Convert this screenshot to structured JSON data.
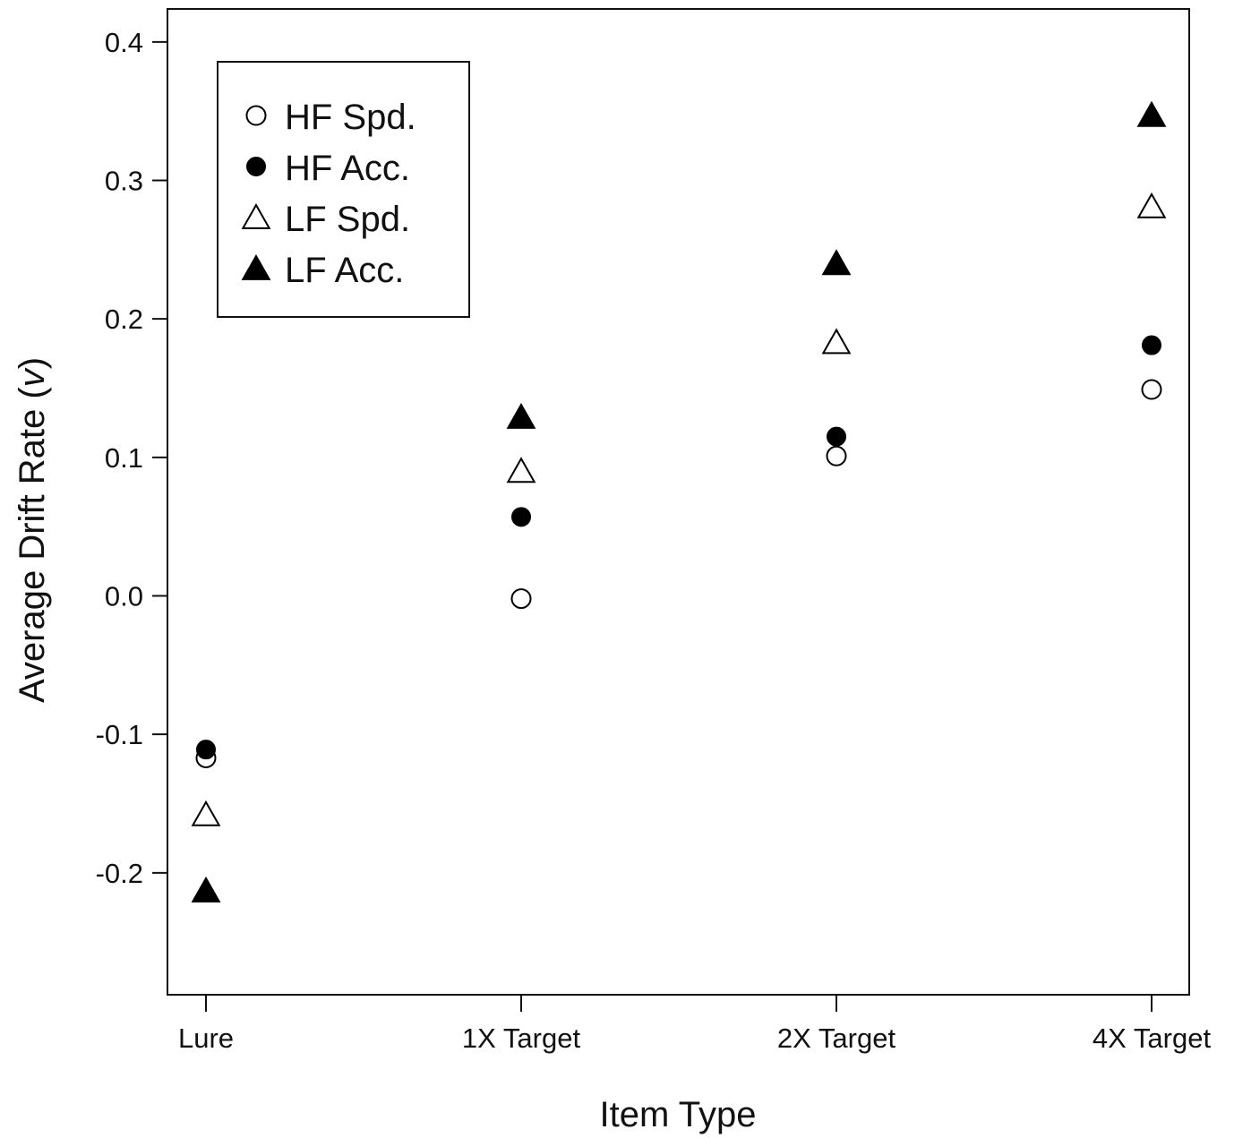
{
  "chart_data": {
    "type": "scatter",
    "title": "",
    "xlabel": "Item Type",
    "ylabel": "Average Drift Rate (v)",
    "ylabel_main": "Average Drift Rate (",
    "ylabel_var": "v",
    "ylabel_close": ")",
    "categories": [
      "Lure",
      "1X Target",
      "2X Target",
      "4X Target"
    ],
    "ylim": [
      -0.28,
      0.43
    ],
    "yticks": [
      -0.2,
      -0.1,
      0.0,
      0.1,
      0.2,
      0.3,
      0.4
    ],
    "ytick_labels": [
      "-0.2",
      "-0.1",
      "0.0",
      "0.1",
      "0.2",
      "0.3",
      "0.4"
    ],
    "grid": false,
    "legend_position": "top-left",
    "series": [
      {
        "name": "HF Spd.",
        "marker": "open-circle",
        "values": [
          -0.117,
          -0.002,
          0.101,
          0.149
        ]
      },
      {
        "name": "HF Acc.",
        "marker": "filled-circle",
        "values": [
          -0.111,
          0.057,
          0.115,
          0.181
        ]
      },
      {
        "name": "LF Spd.",
        "marker": "open-triangle",
        "values": [
          -0.158,
          0.09,
          0.183,
          0.281
        ]
      },
      {
        "name": "LF Acc.",
        "marker": "filled-triangle",
        "values": [
          -0.213,
          0.129,
          0.24,
          0.347
        ]
      }
    ]
  }
}
